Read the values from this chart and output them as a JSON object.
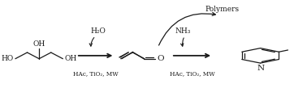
{
  "bg_color": "#ffffff",
  "text_color": "#1a1a1a",
  "arrow_color": "#1a1a1a",
  "figsize": [
    3.78,
    1.3
  ],
  "dpi": 100,
  "polymers_label": "Polymers",
  "arrow1_label_top": "H₂O",
  "arrow1_label_bot": "HAc, TiO₂, MW",
  "arrow2_label_top": "NH₃",
  "arrow2_label_bot": "HAc, TiO₂, MW",
  "font_size": 6.0,
  "line_width": 0.9
}
